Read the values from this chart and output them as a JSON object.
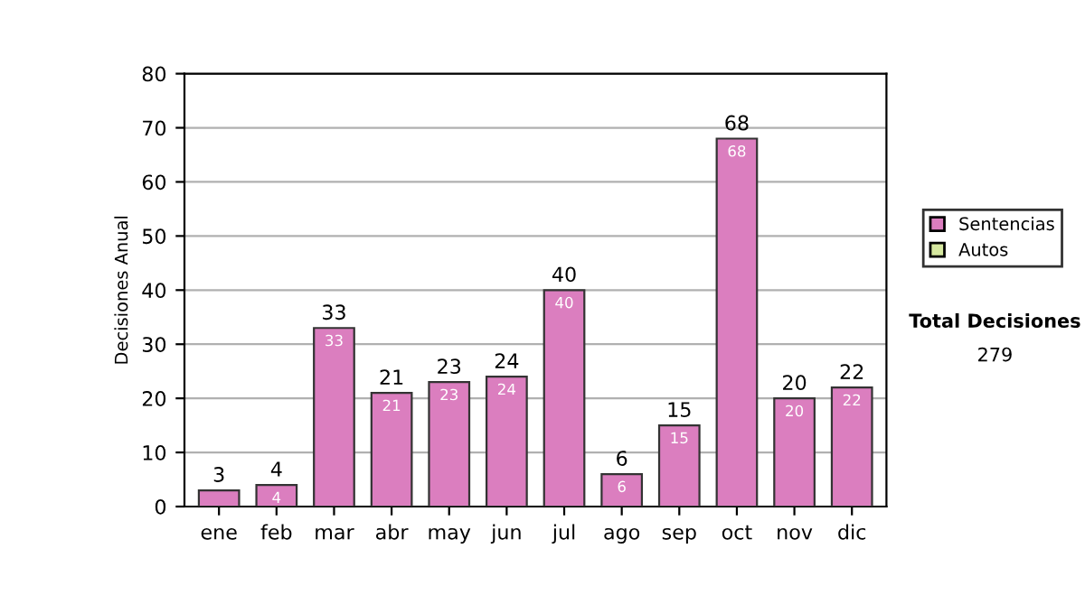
{
  "chart_data": {
    "type": "bar",
    "ylabel": "Decisiones Anual",
    "categories": [
      "ene",
      "feb",
      "mar",
      "abr",
      "may",
      "jun",
      "jul",
      "ago",
      "sep",
      "oct",
      "nov",
      "dic"
    ],
    "series": [
      {
        "name": "Sentencias",
        "color": "#db7ebf",
        "values": [
          3,
          4,
          33,
          21,
          23,
          24,
          40,
          6,
          15,
          68,
          20,
          22
        ],
        "value_labels": [
          null,
          "4",
          "33",
          "21",
          "23",
          "24",
          "40",
          "6",
          "15",
          "68",
          "20",
          "22"
        ]
      },
      {
        "name": "Autos",
        "color": "#d6e8a0",
        "values": [
          null,
          null,
          null,
          null,
          null,
          null,
          null,
          null,
          null,
          null,
          null,
          null
        ]
      }
    ],
    "ylim": [
      0,
      80
    ],
    "yticks": [
      0,
      10,
      20,
      30,
      40,
      50,
      60,
      70,
      80
    ],
    "stacked": true,
    "totals": [
      "3",
      "4",
      "33",
      "21",
      "23",
      "24",
      "40",
      "6",
      "15",
      "68",
      "20",
      "22"
    ],
    "grid": "y",
    "legend": "right",
    "annotations": [
      "Total Decisiones",
      "279"
    ]
  }
}
